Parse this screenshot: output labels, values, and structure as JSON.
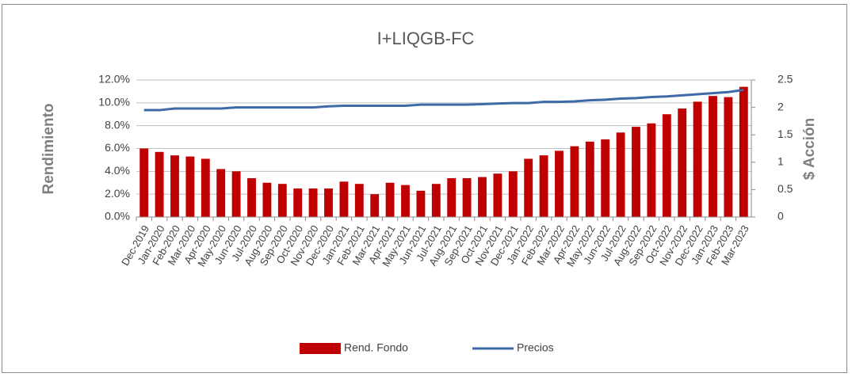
{
  "chart_data": {
    "type": "bar_line",
    "title": "I+LIQGB-FC",
    "y_label": "Rendimiento",
    "y2_label": "$ Acción",
    "categories": [
      "Dec-2019",
      "Jan-2020",
      "Feb-2020",
      "Mar-2020",
      "Apr-2020",
      "May-2020",
      "Jun-2020",
      "Jul-2020",
      "Aug-2020",
      "Sep-2020",
      "Oct-2020",
      "Nov-2020",
      "Dec-2020",
      "Jan-2021",
      "Feb-2021",
      "Mar-2021",
      "Apr-2021",
      "May-2021",
      "Jun-2021",
      "Jul-2021",
      "Aug-2021",
      "Sep-2021",
      "Oct-2021",
      "Nov-2021",
      "Dec-2021",
      "Jan-2022",
      "Feb-2022",
      "Mar-2022",
      "Apr-2022",
      "May-2022",
      "Jun-2022",
      "Jul-2022",
      "Aug-2022",
      "Sep-2022",
      "Oct-2022",
      "Nov-2022",
      "Dec-2022",
      "Jan-2023",
      "Feb-2023",
      "Mar-2023"
    ],
    "series": [
      {
        "name": "Rend. Fondo",
        "color": "#c00000",
        "type": "bar",
        "values": [
          6.0,
          5.7,
          5.4,
          5.3,
          5.1,
          4.2,
          4.0,
          3.4,
          3.0,
          2.9,
          2.5,
          2.5,
          2.5,
          3.1,
          2.9,
          2.0,
          3.0,
          2.8,
          2.3,
          2.9,
          3.4,
          3.4,
          3.5,
          3.8,
          4.0,
          5.1,
          5.4,
          5.8,
          6.2,
          6.6,
          6.8,
          7.4,
          7.9,
          8.2,
          9.0,
          9.5,
          10.1,
          10.6,
          10.5,
          11.4
        ]
      },
      {
        "name": "Precios",
        "color": "#3e6aa8",
        "type": "line",
        "axis": "y2",
        "values": [
          1.95,
          1.95,
          1.98,
          1.98,
          1.98,
          1.98,
          2.0,
          2.0,
          2.0,
          2.0,
          2.0,
          2.0,
          2.02,
          2.03,
          2.03,
          2.03,
          2.03,
          2.03,
          2.05,
          2.05,
          2.05,
          2.05,
          2.06,
          2.07,
          2.08,
          2.08,
          2.1,
          2.1,
          2.11,
          2.13,
          2.14,
          2.16,
          2.17,
          2.19,
          2.2,
          2.22,
          2.24,
          2.26,
          2.28,
          2.32
        ]
      }
    ],
    "ylim": [
      0,
      12
    ],
    "yticks": [
      {
        "value": 0,
        "label": "0.0%"
      },
      {
        "value": 2,
        "label": "2.0%"
      },
      {
        "value": 4,
        "label": "4.0%"
      },
      {
        "value": 6,
        "label": "6.0%"
      },
      {
        "value": 8,
        "label": "8.0%"
      },
      {
        "value": 10,
        "label": "10.0%"
      },
      {
        "value": 12,
        "label": "12.0%"
      }
    ],
    "y2lim": [
      0,
      2.5
    ],
    "y2ticks": [
      0,
      0.5,
      1,
      1.5,
      2,
      2.5
    ],
    "grid": true
  }
}
